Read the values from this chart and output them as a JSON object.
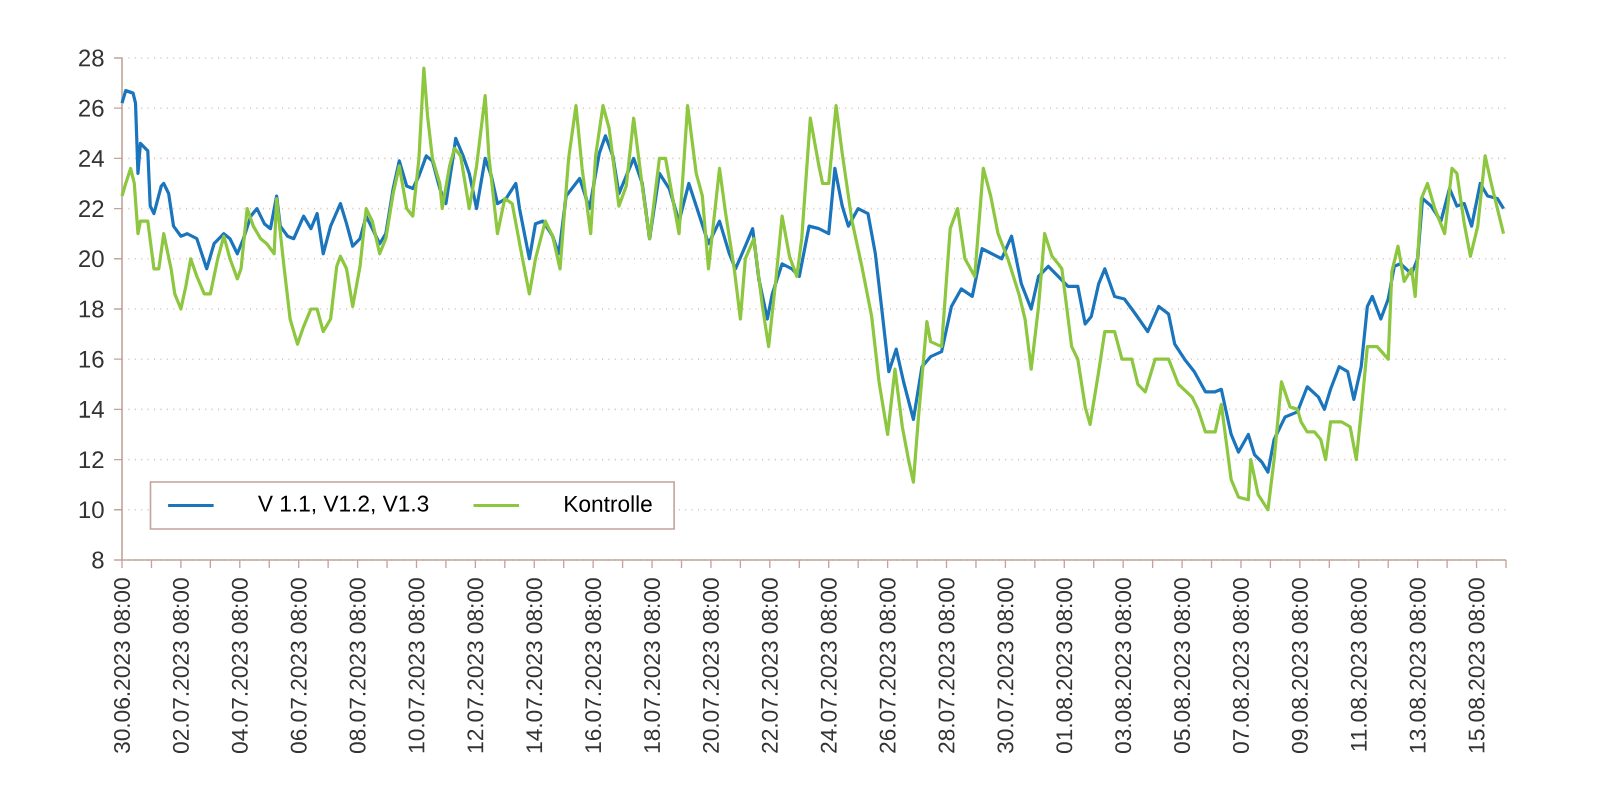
{
  "chart_data": {
    "type": "line",
    "xlim": [
      "2023-06-30T08:00",
      "2023-08-16T08:00"
    ],
    "xticks": [
      {
        "value": "2023-06-30T08:00",
        "label": "30.06.2023 08:00"
      },
      {
        "value": "2023-07-01T08:00",
        "label": null
      },
      {
        "value": "2023-07-02T08:00",
        "label": "02.07.2023 08:00"
      },
      {
        "value": "2023-07-03T08:00",
        "label": null
      },
      {
        "value": "2023-07-04T08:00",
        "label": "04.07.2023 08:00"
      },
      {
        "value": "2023-07-05T08:00",
        "label": null
      },
      {
        "value": "2023-07-06T08:00",
        "label": "06.07.2023 08:00"
      },
      {
        "value": "2023-07-07T08:00",
        "label": null
      },
      {
        "value": "2023-07-08T08:00",
        "label": "08.07.2023 08:00"
      },
      {
        "value": "2023-07-09T08:00",
        "label": null
      },
      {
        "value": "2023-07-10T08:00",
        "label": "10.07.2023 08:00"
      },
      {
        "value": "2023-07-11T08:00",
        "label": null
      },
      {
        "value": "2023-07-12T08:00",
        "label": "12.07.2023 08:00"
      },
      {
        "value": "2023-07-13T08:00",
        "label": null
      },
      {
        "value": "2023-07-14T08:00",
        "label": "14.07.2023 08:00"
      },
      {
        "value": "2023-07-15T08:00",
        "label": null
      },
      {
        "value": "2023-07-16T08:00",
        "label": "16.07.2023 08:00"
      },
      {
        "value": "2023-07-17T08:00",
        "label": null
      },
      {
        "value": "2023-07-18T08:00",
        "label": "18.07.2023 08:00"
      },
      {
        "value": "2023-07-19T08:00",
        "label": null
      },
      {
        "value": "2023-07-20T08:00",
        "label": "20.07.2023 08:00"
      },
      {
        "value": "2023-07-21T08:00",
        "label": null
      },
      {
        "value": "2023-07-22T08:00",
        "label": "22.07.2023 08:00"
      },
      {
        "value": "2023-07-23T08:00",
        "label": null
      },
      {
        "value": "2023-07-24T08:00",
        "label": "24.07.2023 08:00"
      },
      {
        "value": "2023-07-25T08:00",
        "label": null
      },
      {
        "value": "2023-07-26T08:00",
        "label": "26.07.2023 08:00"
      },
      {
        "value": "2023-07-27T08:00",
        "label": null
      },
      {
        "value": "2023-07-28T08:00",
        "label": "28.07.2023 08:00"
      },
      {
        "value": "2023-07-29T08:00",
        "label": null
      },
      {
        "value": "2023-07-30T08:00",
        "label": "30.07.2023 08:00"
      },
      {
        "value": "2023-07-31T08:00",
        "label": null
      },
      {
        "value": "2023-08-01T08:00",
        "label": "01.08.2023 08:00"
      },
      {
        "value": "2023-08-02T08:00",
        "label": null
      },
      {
        "value": "2023-08-03T08:00",
        "label": "03.08.2023 08:00"
      },
      {
        "value": "2023-08-04T08:00",
        "label": null
      },
      {
        "value": "2023-08-05T08:00",
        "label": "05.08.2023 08:00"
      },
      {
        "value": "2023-08-06T08:00",
        "label": null
      },
      {
        "value": "2023-08-07T08:00",
        "label": "07.08.2023 08:00"
      },
      {
        "value": "2023-08-08T08:00",
        "label": null
      },
      {
        "value": "2023-08-09T08:00",
        "label": "09.08.2023 08:00"
      },
      {
        "value": "2023-08-10T08:00",
        "label": null
      },
      {
        "value": "2023-08-11T08:00",
        "label": "11.08.2023 08:00"
      },
      {
        "value": "2023-08-12T08:00",
        "label": null
      },
      {
        "value": "2023-08-13T08:00",
        "label": "13.08.2023 08:00"
      },
      {
        "value": "2023-08-14T08:00",
        "label": null
      },
      {
        "value": "2023-08-15T08:00",
        "label": "15.08.2023 08:00"
      },
      {
        "value": "2023-08-16T08:00",
        "label": null
      }
    ],
    "ylim": [
      8,
      28
    ],
    "yticks": [
      8,
      10,
      12,
      14,
      16,
      18,
      20,
      22,
      24,
      26,
      28
    ],
    "grid": "y",
    "legend": "bottom left",
    "series": [
      {
        "name": "V 1.1, V1.2, V1.3",
        "color": "#1b75bc",
        "x": [
          "2023-06-30T08:00",
          "2023-06-30T11:00",
          "2023-06-30T17:00",
          "2023-06-30T19:00",
          "2023-06-30T21:00",
          "2023-06-30T23:00",
          "2023-07-01T05:00",
          "2023-07-01T07:00",
          "2023-07-01T10:00",
          "2023-07-01T16:00",
          "2023-07-01T18:00",
          "2023-07-01T22:00",
          "2023-07-02T02:00",
          "2023-07-02T08:00",
          "2023-07-02T13:00",
          "2023-07-02T21:00",
          "2023-07-03T05:00",
          "2023-07-03T11:00",
          "2023-07-03T19:00",
          "2023-07-04T00:00",
          "2023-07-04T06:00",
          "2023-07-04T11:00",
          "2023-07-04T17:00",
          "2023-07-04T22:00",
          "2023-07-05T04:00",
          "2023-07-05T09:00",
          "2023-07-05T14:00",
          "2023-07-05T17:00",
          "2023-07-05T23:00",
          "2023-07-06T04:00",
          "2023-07-06T12:00",
          "2023-07-06T18:00",
          "2023-07-06T23:00",
          "2023-07-07T04:00",
          "2023-07-07T10:00",
          "2023-07-07T18:00",
          "2023-07-07T23:00",
          "2023-07-08T04:00",
          "2023-07-08T10:00",
          "2023-07-08T15:00",
          "2023-07-08T20:00",
          "2023-07-09T02:00",
          "2023-07-09T07:00",
          "2023-07-09T13:00",
          "2023-07-09T18:00",
          "2023-07-10T00:00",
          "2023-07-10T05:00",
          "2023-07-10T10:00",
          "2023-07-10T16:00",
          "2023-07-10T21:00",
          "2023-07-11T03:00",
          "2023-07-11T08:00",
          "2023-07-11T14:00",
          "2023-07-11T16:00",
          "2023-07-11T22:00",
          "2023-07-12T03:00",
          "2023-07-12T09:00",
          "2023-07-12T16:00",
          "2023-07-12T21:00",
          "2023-07-13T02:00",
          "2023-07-13T09:00",
          "2023-07-13T17:00",
          "2023-07-13T20:00",
          "2023-07-14T04:00",
          "2023-07-14T09:00",
          "2023-07-14T15:00",
          "2023-07-14T23:00",
          "2023-07-15T04:00",
          "2023-07-15T10:00",
          "2023-07-15T21:00",
          "2023-07-16T05:00",
          "2023-07-16T13:00",
          "2023-07-16T18:00",
          "2023-07-17T00:00",
          "2023-07-17T05:00",
          "2023-07-17T11:00",
          "2023-07-17T17:00",
          "2023-07-18T00:00",
          "2023-07-18T06:00",
          "2023-07-18T14:00",
          "2023-07-18T22:00",
          "2023-07-19T06:00",
          "2023-07-19T14:00",
          "2023-07-19T22:00",
          "2023-07-20T06:00",
          "2023-07-20T15:00",
          "2023-07-20T23:00",
          "2023-07-21T04:00",
          "2023-07-21T12:00",
          "2023-07-21T18:00",
          "2023-07-21T23:00",
          "2023-07-22T06:00",
          "2023-07-22T10:00",
          "2023-07-22T18:00",
          "2023-07-23T02:00",
          "2023-07-23T08:00",
          "2023-07-23T16:00",
          "2023-07-24T00:00",
          "2023-07-24T08:00",
          "2023-07-24T13:00",
          "2023-07-24T19:00",
          "2023-07-25T00:00",
          "2023-07-25T08:00",
          "2023-07-25T16:00",
          "2023-07-25T22:00",
          "2023-07-26T03:00",
          "2023-07-26T09:00",
          "2023-07-26T15:00",
          "2023-07-26T21:00",
          "2023-07-27T05:00",
          "2023-07-27T12:00",
          "2023-07-27T19:00",
          "2023-07-28T04:00",
          "2023-07-28T12:00",
          "2023-07-28T20:00",
          "2023-07-29T05:00",
          "2023-07-29T13:00",
          "2023-07-29T21:00",
          "2023-07-30T05:00",
          "2023-07-30T13:00",
          "2023-07-30T21:00",
          "2023-07-31T05:00",
          "2023-07-31T11:00",
          "2023-07-31T19:00",
          "2023-08-01T03:00",
          "2023-08-01T11:00",
          "2023-08-01T19:00",
          "2023-08-02T01:00",
          "2023-08-02T06:00",
          "2023-08-02T12:00",
          "2023-08-02T17:00",
          "2023-08-03T01:00",
          "2023-08-03T09:00",
          "2023-08-03T18:00",
          "2023-08-04T04:00",
          "2023-08-04T13:00",
          "2023-08-04T21:00",
          "2023-08-05T02:00",
          "2023-08-05T10:00",
          "2023-08-05T18:00",
          "2023-08-06T03:00",
          "2023-08-06T11:00",
          "2023-08-06T16:00",
          "2023-08-07T00:00",
          "2023-08-07T06:00",
          "2023-08-07T14:00",
          "2023-08-07T19:00",
          "2023-08-08T01:00",
          "2023-08-08T06:00",
          "2023-08-08T11:00",
          "2023-08-08T20:00",
          "2023-08-09T06:00",
          "2023-08-09T14:00",
          "2023-08-09T23:00",
          "2023-08-10T04:00",
          "2023-08-10T09:00",
          "2023-08-10T16:00",
          "2023-08-10T23:00",
          "2023-08-11T04:00",
          "2023-08-11T10:00",
          "2023-08-11T15:00",
          "2023-08-11T19:00",
          "2023-08-12T02:00",
          "2023-08-12T08:00",
          "2023-08-12T13:00",
          "2023-08-12T18:00",
          "2023-08-13T03:00",
          "2023-08-13T08:00",
          "2023-08-13T12:00",
          "2023-08-13T19:00",
          "2023-08-14T03:00",
          "2023-08-14T10:00",
          "2023-08-14T16:00",
          "2023-08-14T22:00",
          "2023-08-15T04:00",
          "2023-08-15T11:00",
          "2023-08-15T17:00",
          "2023-08-16T01:00",
          "2023-08-16T06:00"
        ],
        "values": [
          26.2,
          26.7,
          26.6,
          26.2,
          23.4,
          24.6,
          24.3,
          22.1,
          21.8,
          22.9,
          23,
          22.6,
          21.3,
          20.9,
          21,
          20.8,
          19.6,
          20.6,
          21,
          20.8,
          20.2,
          20.8,
          21.7,
          22,
          21.4,
          21.2,
          22.5,
          21.3,
          20.9,
          20.8,
          21.7,
          21.2,
          21.8,
          20.2,
          21.3,
          22.2,
          21.4,
          20.5,
          20.8,
          21.7,
          21.2,
          20.6,
          21,
          22.8,
          23.9,
          22.9,
          22.8,
          23.3,
          24.1,
          23.9,
          22.8,
          22.2,
          24.1,
          24.8,
          24.1,
          23.4,
          22,
          24,
          23.3,
          22.2,
          22.4,
          23,
          22,
          20,
          21.4,
          21.5,
          20.9,
          20.2,
          22.5,
          23.2,
          22,
          24.2,
          24.9,
          24.1,
          22.6,
          23.3,
          24,
          23,
          20.8,
          23.4,
          22.8,
          21.5,
          23,
          21.8,
          20.6,
          21.5,
          20.2,
          19.6,
          20.5,
          21.2,
          19.2,
          17.6,
          18.6,
          19.8,
          19.6,
          19.3,
          21.3,
          21.2,
          21,
          23.6,
          22.1,
          21.3,
          22,
          21.8,
          20.2,
          18.1,
          15.5,
          16.4,
          15.1,
          13.6,
          15.7,
          16.1,
          16.3,
          18.1,
          18.8,
          18.5,
          20.4,
          20.2,
          20,
          20.9,
          19,
          18,
          19.3,
          19.7,
          19.3,
          18.9,
          18.9,
          17.4,
          17.7,
          19,
          19.6,
          18.5,
          18.4,
          17.8,
          17.1,
          18.1,
          17.8,
          16.6,
          16,
          15.5,
          14.7,
          14.7,
          14.8,
          13,
          12.3,
          13,
          12.2,
          11.9,
          11.5,
          12.8,
          13.7,
          13.9,
          14.9,
          14.5,
          14,
          14.8,
          15.7,
          15.5,
          14.4,
          15.7,
          18.1,
          18.5,
          17.6,
          18.4,
          19.7,
          19.8,
          19.4,
          20,
          22.4,
          22.1,
          21.5,
          22.8,
          22.1,
          22.2,
          21.3,
          23,
          22.5,
          22.4,
          22
        ]
      },
      {
        "name": "Kontrolle",
        "color": "#8dc63f",
        "x": [
          "2023-06-30T08:00",
          "2023-06-30T11:00",
          "2023-06-30T15:00",
          "2023-06-30T18:00",
          "2023-06-30T21:00",
          "2023-06-30T23:00",
          "2023-07-01T05:00",
          "2023-07-01T10:00",
          "2023-07-01T14:00",
          "2023-07-01T18:00",
          "2023-07-02T00:00",
          "2023-07-02T03:00",
          "2023-07-02T08:00",
          "2023-07-02T12:00",
          "2023-07-02T16:00",
          "2023-07-02T21:00",
          "2023-07-03T03:00",
          "2023-07-03T08:00",
          "2023-07-03T14:00",
          "2023-07-03T19:00",
          "2023-07-04T00:00",
          "2023-07-04T06:00",
          "2023-07-04T09:00",
          "2023-07-04T14:00",
          "2023-07-04T19:00",
          "2023-07-05T01:00",
          "2023-07-05T06:00",
          "2023-07-05T12:00",
          "2023-07-05T14:00",
          "2023-07-05T20:00",
          "2023-07-06T01:00",
          "2023-07-06T07:00",
          "2023-07-06T12:00",
          "2023-07-06T18:00",
          "2023-07-06T23:00",
          "2023-07-07T04:00",
          "2023-07-07T10:00",
          "2023-07-07T15:00",
          "2023-07-07T18:00",
          "2023-07-07T23:00",
          "2023-07-08T04:00",
          "2023-07-08T10:00",
          "2023-07-08T15:00",
          "2023-07-08T20:00",
          "2023-07-09T02:00",
          "2023-07-09T07:00",
          "2023-07-09T13:00",
          "2023-07-09T18:00",
          "2023-07-10T00:00",
          "2023-07-10T05:00",
          "2023-07-10T10:00",
          "2023-07-10T14:00",
          "2023-07-10T17:00",
          "2023-07-10T21:00",
          "2023-07-11T03:00",
          "2023-07-11T05:00",
          "2023-07-11T11:00",
          "2023-07-11T15:00",
          "2023-07-11T20:00",
          "2023-07-12T03:00",
          "2023-07-12T09:00",
          "2023-07-12T16:00",
          "2023-07-12T19:00",
          "2023-07-13T02:00",
          "2023-07-13T08:00",
          "2023-07-13T14:00",
          "2023-07-13T22:00",
          "2023-07-14T04:00",
          "2023-07-14T09:00",
          "2023-07-14T17:00",
          "2023-07-14T23:00",
          "2023-07-15T05:00",
          "2023-07-15T12:00",
          "2023-07-15T18:00",
          "2023-07-15T23:00",
          "2023-07-16T06:00",
          "2023-07-16T10:00",
          "2023-07-16T16:00",
          "2023-07-16T21:00",
          "2023-07-17T05:00",
          "2023-07-17T11:00",
          "2023-07-17T17:00",
          "2023-07-18T00:00",
          "2023-07-18T06:00",
          "2023-07-18T14:00",
          "2023-07-18T19:00",
          "2023-07-19T06:00",
          "2023-07-19T13:00",
          "2023-07-19T20:00",
          "2023-07-20T01:00",
          "2023-07-20T06:00",
          "2023-07-20T15:00",
          "2023-07-20T20:00",
          "2023-07-21T03:00",
          "2023-07-21T08:00",
          "2023-07-21T12:00",
          "2023-07-21T19:00",
          "2023-07-22T02:00",
          "2023-07-22T07:00",
          "2023-07-22T13:00",
          "2023-07-22T18:00",
          "2023-07-23T00:00",
          "2023-07-23T06:00",
          "2023-07-23T10:00",
          "2023-07-23T17:00",
          "2023-07-24T00:00",
          "2023-07-24T03:00",
          "2023-07-24T08:00",
          "2023-07-24T14:00",
          "2023-07-24T19:00",
          "2023-07-25T03:00",
          "2023-07-25T11:00",
          "2023-07-25T19:00",
          "2023-07-26T01:00",
          "2023-07-26T08:00",
          "2023-07-26T14:00",
          "2023-07-26T20:00",
          "2023-07-27T01:00",
          "2023-07-27T05:00",
          "2023-07-27T09:00",
          "2023-07-27T16:00",
          "2023-07-27T19:00",
          "2023-07-28T04:00",
          "2023-07-28T11:00",
          "2023-07-28T17:00",
          "2023-07-28T23:00",
          "2023-07-29T07:00",
          "2023-07-29T14:00",
          "2023-07-29T20:00",
          "2023-07-30T02:00",
          "2023-07-30T10:00",
          "2023-07-30T19:00",
          "2023-07-31T00:00",
          "2023-07-31T05:00",
          "2023-07-31T11:00",
          "2023-07-31T16:00",
          "2023-07-31T22:00",
          "2023-08-01T03:00",
          "2023-08-01T06:00",
          "2023-08-01T14:00",
          "2023-08-01T19:00",
          "2023-08-02T01:00",
          "2023-08-02T05:00",
          "2023-08-02T12:00",
          "2023-08-02T17:00",
          "2023-08-03T01:00",
          "2023-08-03T07:00",
          "2023-08-03T15:00",
          "2023-08-03T20:00",
          "2023-08-04T02:00",
          "2023-08-04T10:00",
          "2023-08-04T21:00",
          "2023-08-05T05:00",
          "2023-08-05T16:00",
          "2023-08-05T21:00",
          "2023-08-06T03:00",
          "2023-08-06T11:00",
          "2023-08-06T16:00",
          "2023-08-07T00:00",
          "2023-08-07T06:00",
          "2023-08-07T14:00",
          "2023-08-07T16:00",
          "2023-08-07T22:00",
          "2023-08-08T06:00",
          "2023-08-08T11:00",
          "2023-08-08T17:00",
          "2023-08-09T00:00",
          "2023-08-09T06:00",
          "2023-08-09T09:00",
          "2023-08-09T14:00",
          "2023-08-09T20:00",
          "2023-08-10T01:00",
          "2023-08-10T05:00",
          "2023-08-10T09:00",
          "2023-08-10T18:00",
          "2023-08-11T01:00",
          "2023-08-11T06:00",
          "2023-08-11T10:00",
          "2023-08-11T15:00",
          "2023-08-11T23:00",
          "2023-08-12T08:00",
          "2023-08-12T11:00",
          "2023-08-12T16:00",
          "2023-08-12T21:00",
          "2023-08-13T03:00",
          "2023-08-13T06:00",
          "2023-08-13T11:00",
          "2023-08-13T16:00",
          "2023-08-13T22:00",
          "2023-08-14T06:00",
          "2023-08-14T12:00",
          "2023-08-14T16:00",
          "2023-08-14T22:00",
          "2023-08-15T03:00",
          "2023-08-15T09:00",
          "2023-08-15T15:00",
          "2023-08-15T20:00",
          "2023-08-16T01:00",
          "2023-08-16T06:00"
        ],
        "values": [
          22.5,
          23,
          23.6,
          23,
          21,
          21.5,
          21.5,
          19.6,
          19.6,
          21,
          19.6,
          18.6,
          18,
          18.9,
          20,
          19.3,
          18.6,
          18.6,
          20,
          20.9,
          20,
          19.2,
          19.6,
          22,
          21.3,
          20.8,
          20.6,
          20.2,
          22.4,
          19.7,
          17.6,
          16.6,
          17.3,
          18,
          18,
          17.1,
          17.6,
          19.7,
          20.1,
          19.6,
          18.1,
          19.7,
          22,
          21.5,
          20.2,
          20.8,
          22.6,
          23.7,
          22,
          21.7,
          24,
          27.6,
          25.7,
          24,
          23,
          22,
          23.7,
          24.4,
          24.1,
          22,
          23.7,
          26.5,
          24.1,
          21,
          22.4,
          22.2,
          20.1,
          18.6,
          20,
          21.5,
          20.9,
          19.6,
          24,
          26.1,
          23.6,
          21,
          24.1,
          26.1,
          25.2,
          22.1,
          22.9,
          25.6,
          22.9,
          20.8,
          24,
          24,
          21,
          26.1,
          23.4,
          22.5,
          19.6,
          23.6,
          21.8,
          19.6,
          17.6,
          20,
          20.8,
          18.1,
          16.5,
          19.2,
          21.7,
          20.1,
          19.3,
          20.8,
          25.6,
          23.7,
          23,
          23,
          26.1,
          24.2,
          21.5,
          19.7,
          17.7,
          15.1,
          13,
          15.6,
          13.3,
          12,
          11.1,
          13.6,
          17.5,
          16.7,
          16.5,
          21.2,
          22,
          20,
          19.3,
          23.6,
          22.5,
          21,
          20,
          18.6,
          17.6,
          15.6,
          18.1,
          21,
          20.1,
          19.8,
          19.6,
          16.5,
          16,
          14.1,
          13.4,
          15.5,
          17.1,
          17.1,
          16,
          16,
          15,
          14.7,
          16,
          16,
          15,
          14.5,
          14,
          13.1,
          13.1,
          14.2,
          11.2,
          10.5,
          10.4,
          12,
          10.6,
          10,
          12,
          15.1,
          14.1,
          14,
          13.5,
          13.1,
          13.1,
          12.8,
          12,
          13.5,
          13.5,
          13.3,
          12,
          13.9,
          16.5,
          16.5,
          16,
          19.5,
          20.5,
          19.1,
          19.6,
          18.5,
          22.4,
          23,
          22,
          21,
          23.6,
          23.4,
          21.4,
          20.1,
          21.3,
          24.1,
          23,
          22,
          21
        ]
      }
    ]
  }
}
